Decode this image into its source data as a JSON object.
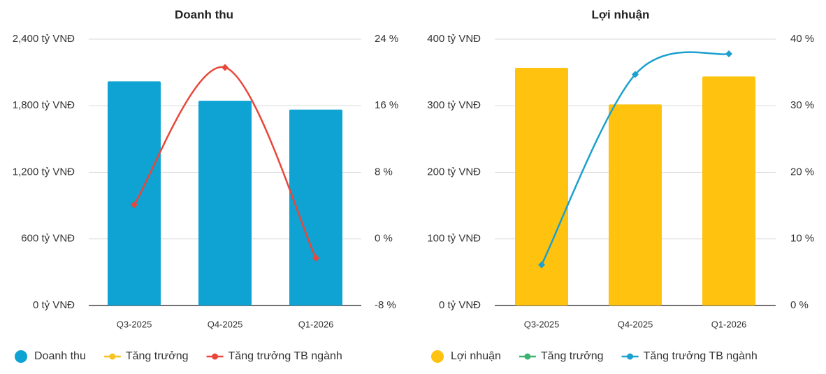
{
  "chart_data": [
    {
      "type": "bar-line",
      "title": "Doanh thu",
      "categories": [
        "Q3-2025",
        "Q4-2025",
        "Q1-2026"
      ],
      "ylim": [
        0,
        2400
      ],
      "yticks": [
        {
          "value": 0,
          "label": "0 tỷ VNĐ"
        },
        {
          "value": 600,
          "label": "600 tỷ VNĐ"
        },
        {
          "value": 1200,
          "label": "1,200 tỷ VNĐ"
        },
        {
          "value": 1800,
          "label": "1,800 tỷ VNĐ"
        },
        {
          "value": 2400,
          "label": "2,400 tỷ VNĐ"
        }
      ],
      "y2lim": [
        -8,
        24
      ],
      "y2ticks": [
        {
          "value": -8,
          "label": "-8 %"
        },
        {
          "value": 0,
          "label": "0 %"
        },
        {
          "value": 8,
          "label": "8 %"
        },
        {
          "value": 16,
          "label": "16 %"
        },
        {
          "value": 24,
          "label": "24 %"
        }
      ],
      "grid": true,
      "series": [
        {
          "name": "Doanh thu",
          "type": "bar",
          "color": "#0ea3d2",
          "values": [
            2020,
            1845,
            1765
          ]
        },
        {
          "name": "Tăng trưởng",
          "type": "line",
          "axis": "y2",
          "color": "#f7c325",
          "values": [
            null,
            null,
            null
          ]
        },
        {
          "name": "Tăng trưởng TB ngành",
          "type": "line",
          "axis": "y2",
          "color": "#e8473a",
          "values": [
            4.1,
            20.6,
            -2.3
          ]
        }
      ]
    },
    {
      "type": "bar-line",
      "title": "Lợi nhuận",
      "categories": [
        "Q3-2025",
        "Q4-2025",
        "Q1-2026"
      ],
      "ylim": [
        0,
        400
      ],
      "yticks": [
        {
          "value": 0,
          "label": "0 tỷ VNĐ"
        },
        {
          "value": 100,
          "label": "100 tỷ VNĐ"
        },
        {
          "value": 200,
          "label": "200 tỷ VNĐ"
        },
        {
          "value": 300,
          "label": "300 tỷ VNĐ"
        },
        {
          "value": 400,
          "label": "400 tỷ VNĐ"
        }
      ],
      "y2lim": [
        0,
        40
      ],
      "y2ticks": [
        {
          "value": 0,
          "label": "0 %"
        },
        {
          "value": 10,
          "label": "10 %"
        },
        {
          "value": 20,
          "label": "20 %"
        },
        {
          "value": 30,
          "label": "30 %"
        },
        {
          "value": 40,
          "label": "40 %"
        }
      ],
      "grid": true,
      "series": [
        {
          "name": "Lợi nhuận",
          "type": "bar",
          "color": "#ffc20e",
          "values": [
            357,
            302,
            344
          ]
        },
        {
          "name": "Tăng trưởng",
          "type": "line",
          "axis": "y2",
          "color": "#3cb371",
          "values": [
            null,
            null,
            null
          ]
        },
        {
          "name": "Tăng trưởng TB ngành",
          "type": "line",
          "axis": "y2",
          "color": "#1ba0cf",
          "values": [
            6.1,
            34.7,
            37.8
          ]
        }
      ]
    }
  ]
}
